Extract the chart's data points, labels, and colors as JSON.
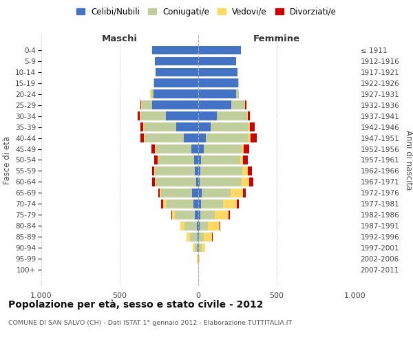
{
  "age_groups": [
    "0-4",
    "5-9",
    "10-14",
    "15-19",
    "20-24",
    "25-29",
    "30-34",
    "35-39",
    "40-44",
    "45-49",
    "50-54",
    "55-59",
    "60-64",
    "65-69",
    "70-74",
    "75-79",
    "80-84",
    "85-89",
    "90-94",
    "95-99",
    "100+"
  ],
  "birth_years": [
    "2007-2011",
    "2002-2006",
    "1997-2001",
    "1992-1996",
    "1987-1991",
    "1982-1986",
    "1977-1981",
    "1972-1976",
    "1967-1971",
    "1962-1966",
    "1957-1961",
    "1952-1956",
    "1947-1951",
    "1942-1946",
    "1937-1941",
    "1932-1936",
    "1927-1931",
    "1922-1926",
    "1917-1921",
    "1912-1916",
    "≤ 1911"
  ],
  "maschi_celibi": [
    295,
    275,
    270,
    280,
    285,
    295,
    205,
    140,
    90,
    45,
    25,
    20,
    15,
    40,
    30,
    20,
    10,
    5,
    4,
    2,
    0
  ],
  "maschi_coniugati": [
    0,
    0,
    0,
    5,
    15,
    65,
    165,
    205,
    250,
    225,
    230,
    255,
    255,
    195,
    175,
    130,
    78,
    48,
    18,
    4,
    0
  ],
  "maschi_vedovi": [
    0,
    0,
    0,
    0,
    5,
    5,
    5,
    5,
    5,
    5,
    5,
    5,
    5,
    10,
    20,
    18,
    25,
    20,
    15,
    4,
    0
  ],
  "maschi_divorziati": [
    0,
    0,
    0,
    0,
    0,
    5,
    10,
    20,
    25,
    25,
    20,
    15,
    20,
    10,
    10,
    5,
    0,
    0,
    0,
    0,
    0
  ],
  "femmine_nubili": [
    270,
    240,
    250,
    255,
    240,
    210,
    120,
    80,
    50,
    35,
    18,
    14,
    10,
    22,
    18,
    12,
    8,
    5,
    4,
    2,
    0
  ],
  "femmine_coniugate": [
    0,
    0,
    0,
    5,
    20,
    85,
    192,
    240,
    270,
    240,
    248,
    265,
    265,
    185,
    140,
    95,
    55,
    32,
    18,
    4,
    0
  ],
  "femmine_vedove": [
    0,
    0,
    0,
    0,
    0,
    5,
    5,
    10,
    15,
    15,
    20,
    38,
    50,
    80,
    88,
    88,
    72,
    52,
    22,
    4,
    0
  ],
  "femmine_divorziate": [
    0,
    0,
    0,
    0,
    0,
    5,
    14,
    28,
    38,
    35,
    28,
    24,
    25,
    14,
    14,
    8,
    4,
    4,
    0,
    0,
    0
  ],
  "color_celibi": "#4472C4",
  "color_coniugati": "#BFCE9B",
  "color_vedovi": "#FFD966",
  "color_divorziati": "#CC0000",
  "xlim": 1000,
  "xticks": [
    -1000,
    -500,
    0,
    500,
    1000
  ],
  "xticklabels": [
    "1.000",
    "500",
    "0",
    "500",
    "1.000"
  ],
  "title_main": "Popolazione per età, sesso e stato civile - 2012",
  "title_sub": "COMUNE DI SAN SALVO (CH) - Dati ISTAT 1° gennaio 2012 - Elaborazione TUTTITALIA.IT",
  "ylabel_left": "Fasce di età",
  "ylabel_right": "Anni di nascita",
  "label_maschi": "Maschi",
  "label_femmine": "Femmine",
  "legend_labels": [
    "Celibi/Nubili",
    "Coniugati/e",
    "Vedovi/e",
    "Divorziati/e"
  ],
  "bg_color": "#FFFFFF",
  "grid_color": "#CCCCCC",
  "bar_height": 0.78
}
